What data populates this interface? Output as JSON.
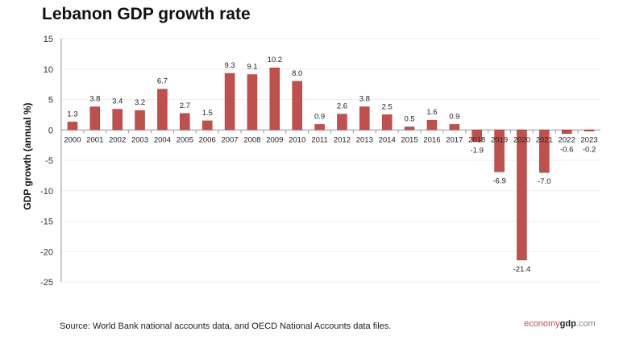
{
  "chart_data": {
    "type": "bar",
    "title": "Lebanon GDP growth rate",
    "ylabel": "GDP growth (annual %)",
    "xlabel": "",
    "ylim": [
      -25,
      15
    ],
    "yticks": [
      15,
      10,
      5,
      0,
      -5,
      -10,
      -15,
      -20,
      -25
    ],
    "grid": true,
    "bar_color": "#c0504d",
    "categories": [
      "2000",
      "2001",
      "2002",
      "2003",
      "2004",
      "2005",
      "2006",
      "2007",
      "2008",
      "2009",
      "2010",
      "2011",
      "2012",
      "2013",
      "2014",
      "2015",
      "2016",
      "2017",
      "2018",
      "2019",
      "2020",
      "2021",
      "2022",
      "2023"
    ],
    "values": [
      1.3,
      3.8,
      3.4,
      3.2,
      6.7,
      2.7,
      1.5,
      9.3,
      9.1,
      10.2,
      8.0,
      0.9,
      2.6,
      3.8,
      2.5,
      0.5,
      1.6,
      0.9,
      -1.9,
      -6.9,
      -21.4,
      -7.0,
      -0.6,
      -0.2
    ],
    "labels": [
      "1.3",
      "3.8",
      "3.4",
      "3.2",
      "6.7",
      "2.7",
      "1.5",
      "9.3",
      "9.1",
      "10.2",
      "8.0",
      "0.9",
      "2.6",
      "3.8",
      "2.5",
      "0.5",
      "1.6",
      "0.9",
      "-1.9",
      "-6.9",
      "-21.4",
      "-7.0",
      "-0.6",
      "-0.2"
    ]
  },
  "footer": {
    "source": "Source:  World Bank national accounts data, and OECD National Accounts data files.",
    "logo_part1": "economy",
    "logo_part2": "gdp",
    "logo_part3": ".com"
  }
}
